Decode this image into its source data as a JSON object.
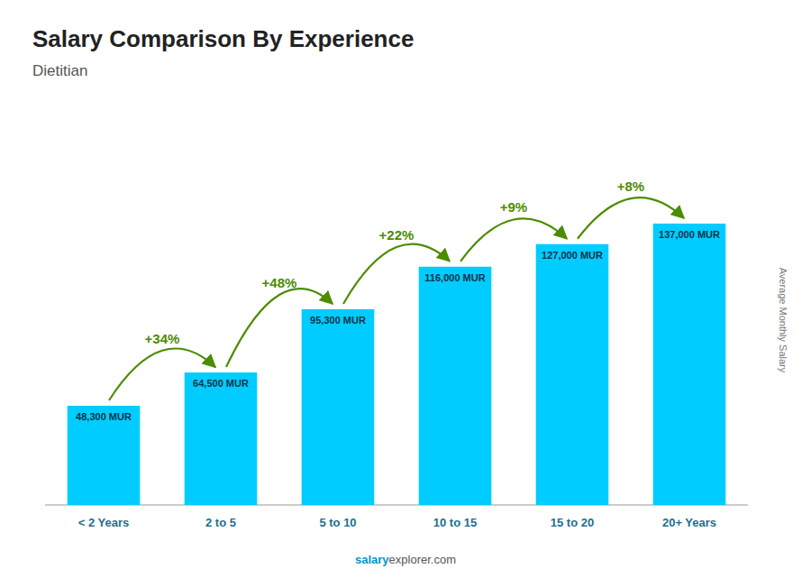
{
  "chart_data": {
    "type": "bar",
    "title": "Salary Comparison By Experience",
    "subtitle": "Dietitian",
    "y_label": "Average Monthly Salary",
    "categories": [
      "< 2 Years",
      "2 to 5",
      "5 to 10",
      "10 to 15",
      "15 to 20",
      "20+ Years"
    ],
    "values": [
      48300,
      64500,
      95300,
      116000,
      127000,
      137000
    ],
    "value_labels": [
      "48,300 MUR",
      "64,500 MUR",
      "95,300 MUR",
      "116,000 MUR",
      "127,000 MUR",
      "137,000 MUR"
    ],
    "data_labels": true,
    "annotations": [
      "+34%",
      "+48%",
      "+22%",
      "+9%",
      "+8%"
    ],
    "color": "#00ccff",
    "ylim": [
      0,
      180000
    ],
    "tick_labels": false,
    "grid": false,
    "watermark": [
      "salary",
      "explorer.com"
    ]
  }
}
